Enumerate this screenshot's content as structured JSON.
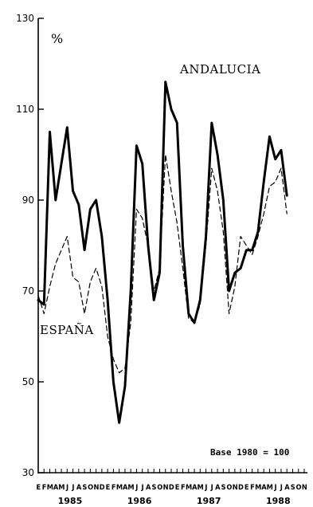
{
  "chart_data": {
    "type": "line",
    "unit_label": "%",
    "note": "Base 1980 = 100",
    "ylim": [
      30,
      130
    ],
    "yticks": [
      30,
      50,
      70,
      90,
      110,
      130
    ],
    "ytick_labels": [
      "30",
      "50",
      "70",
      "90",
      "110",
      "130"
    ],
    "month_labels": [
      "E",
      "F",
      "M",
      "A",
      "M",
      "J",
      "J",
      "A",
      "S",
      "O",
      "N",
      "D",
      "E",
      "F",
      "M",
      "A",
      "M",
      "J",
      "J",
      "A",
      "S",
      "O",
      "N",
      "D",
      "E",
      "F",
      "M",
      "A",
      "M",
      "J",
      "J",
      "A",
      "S",
      "O",
      "N",
      "D",
      "E",
      "F",
      "M",
      "A",
      "M",
      "J",
      "J",
      "A",
      "S",
      "O",
      "N"
    ],
    "year_labels": [
      {
        "label": "1985",
        "index": 5.5
      },
      {
        "label": "1986",
        "index": 17.5
      },
      {
        "label": "1987",
        "index": 29.5
      },
      {
        "label": "1988",
        "index": 41.5
      }
    ],
    "series": [
      {
        "name": "ANDALUCIA",
        "style": "solid",
        "color": "#000000",
        "values": [
          68,
          67,
          105,
          90,
          98,
          106,
          92,
          89,
          79,
          88,
          90,
          82,
          68,
          50,
          41,
          49,
          70,
          102,
          98,
          80,
          68,
          74,
          116,
          110,
          107,
          80,
          65,
          63,
          68,
          82,
          107,
          100,
          90,
          70,
          74,
          75,
          79,
          79,
          83,
          94,
          104,
          99,
          101,
          91
        ]
      },
      {
        "name": "ESPAÑA",
        "style": "dashed",
        "color": "#000000",
        "values": [
          69,
          65,
          71,
          76,
          79,
          82,
          73,
          72,
          65,
          72,
          75,
          71,
          60,
          55,
          52,
          53,
          63,
          88,
          86,
          80,
          70,
          75,
          100,
          92,
          85,
          75,
          64,
          63,
          67,
          80,
          97,
          92,
          83,
          65,
          71,
          82,
          80,
          78,
          82,
          87,
          93,
          94,
          97,
          87
        ]
      }
    ]
  }
}
